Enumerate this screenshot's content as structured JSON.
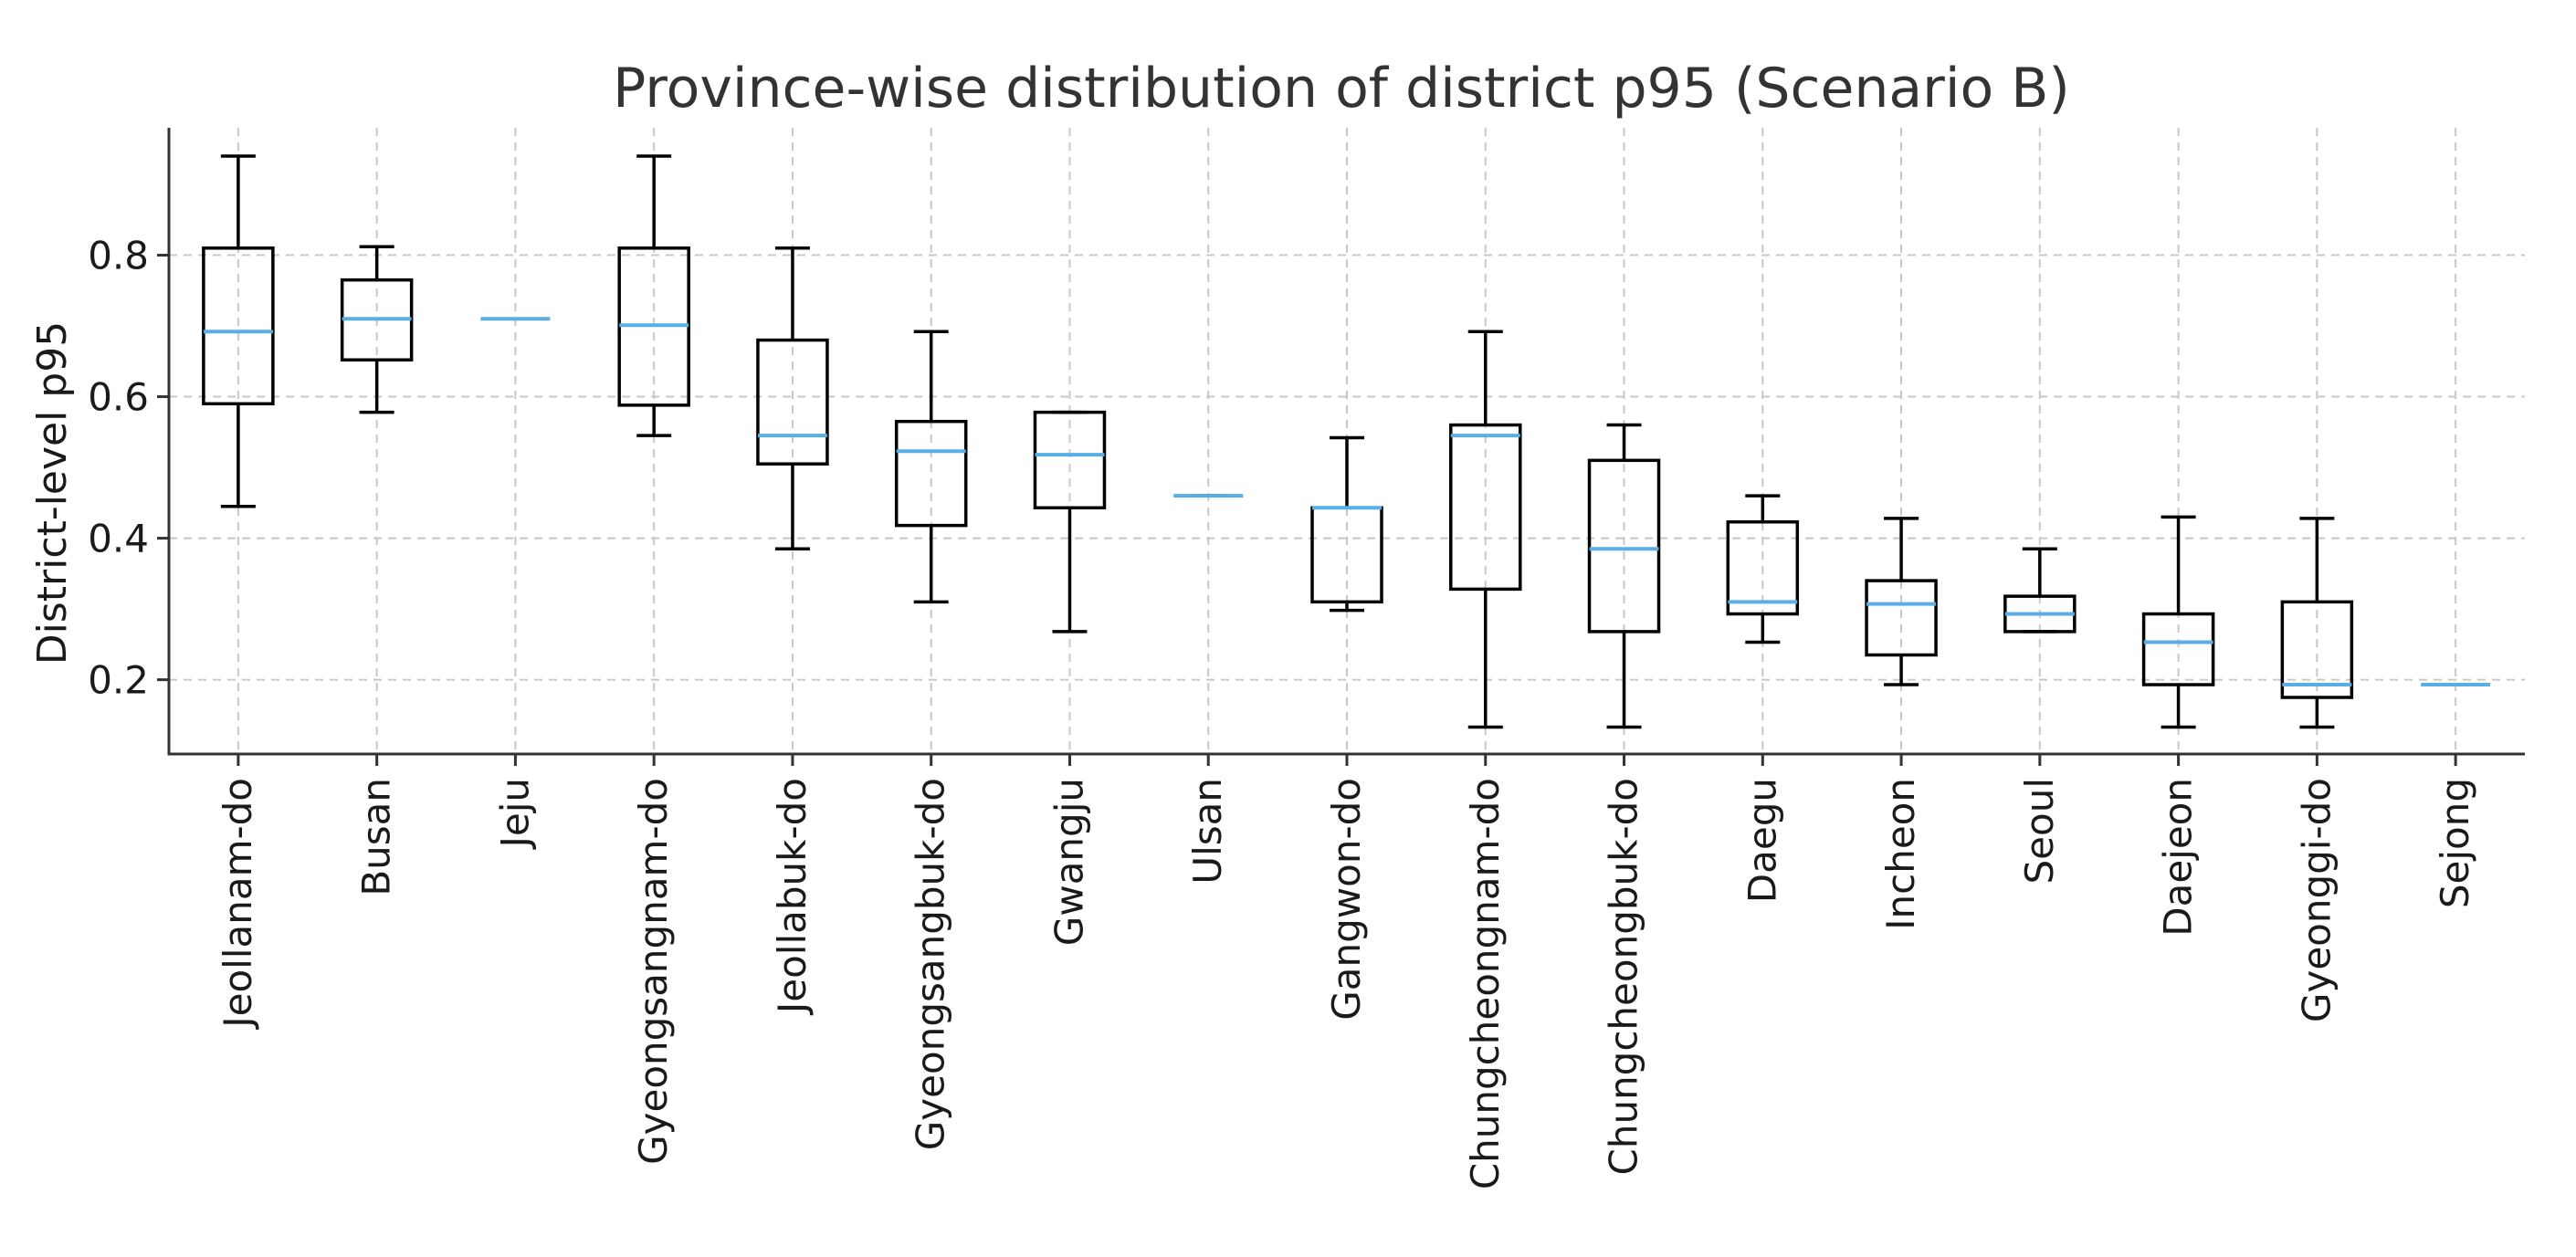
{
  "chart_data": {
    "type": "box",
    "title": "Province-wise distribution of district p95 (Scenario B)",
    "xlabel": "",
    "ylabel": "District-level p95",
    "ylim": [
      0.095,
      0.98
    ],
    "yticks": [
      0.2,
      0.4,
      0.6,
      0.8
    ],
    "ytick_labels": [
      "0.2",
      "0.4",
      "0.6",
      "0.8"
    ],
    "grid": true,
    "colors": {
      "box": "#000000",
      "median": "#5aaee6",
      "grid": "#c8c8c8"
    },
    "categories": [
      "Jeollanam-do",
      "Busan",
      "Jeju",
      "Gyeongsangnam-do",
      "Jeollabuk-do",
      "Gyeongsangbuk-do",
      "Gwangju",
      "Ulsan",
      "Gangwon-do",
      "Chungcheongnam-do",
      "Chungcheongbuk-do",
      "Daegu",
      "Incheon",
      "Seoul",
      "Daejeon",
      "Gyeonggi-do",
      "Sejong"
    ],
    "series": [
      {
        "name": "Jeollanam-do",
        "whislo": 0.445,
        "q1": 0.59,
        "med": 0.692,
        "q3": 0.81,
        "whishi": 0.94
      },
      {
        "name": "Busan",
        "whislo": 0.578,
        "q1": 0.652,
        "med": 0.71,
        "q3": 0.765,
        "whishi": 0.812
      },
      {
        "name": "Jeju",
        "whislo": 0.71,
        "q1": 0.71,
        "med": 0.71,
        "q3": 0.71,
        "whishi": 0.71
      },
      {
        "name": "Gyeongsangnam-do",
        "whislo": 0.545,
        "q1": 0.588,
        "med": 0.701,
        "q3": 0.81,
        "whishi": 0.94
      },
      {
        "name": "Jeollabuk-do",
        "whislo": 0.385,
        "q1": 0.505,
        "med": 0.545,
        "q3": 0.68,
        "whishi": 0.81
      },
      {
        "name": "Gyeongsangbuk-do",
        "whislo": 0.31,
        "q1": 0.418,
        "med": 0.523,
        "q3": 0.565,
        "whishi": 0.692
      },
      {
        "name": "Gwangju",
        "whislo": 0.268,
        "q1": 0.443,
        "med": 0.518,
        "q3": 0.578,
        "whishi": 0.578
      },
      {
        "name": "Ulsan",
        "whislo": 0.46,
        "q1": 0.46,
        "med": 0.46,
        "q3": 0.46,
        "whishi": 0.46
      },
      {
        "name": "Gangwon-do",
        "whislo": 0.298,
        "q1": 0.31,
        "med": 0.443,
        "q3": 0.443,
        "whishi": 0.542
      },
      {
        "name": "Chungcheongnam-do",
        "whislo": 0.133,
        "q1": 0.328,
        "med": 0.545,
        "q3": 0.56,
        "whishi": 0.692
      },
      {
        "name": "Chungcheongbuk-do",
        "whislo": 0.133,
        "q1": 0.268,
        "med": 0.385,
        "q3": 0.51,
        "whishi": 0.56
      },
      {
        "name": "Daegu",
        "whislo": 0.253,
        "q1": 0.293,
        "med": 0.31,
        "q3": 0.423,
        "whishi": 0.46
      },
      {
        "name": "Incheon",
        "whislo": 0.193,
        "q1": 0.235,
        "med": 0.307,
        "q3": 0.34,
        "whishi": 0.428
      },
      {
        "name": "Seoul",
        "whislo": 0.268,
        "q1": 0.268,
        "med": 0.293,
        "q3": 0.318,
        "whishi": 0.385
      },
      {
        "name": "Daejeon",
        "whislo": 0.133,
        "q1": 0.193,
        "med": 0.253,
        "q3": 0.293,
        "whishi": 0.43
      },
      {
        "name": "Gyeonggi-do",
        "whislo": 0.133,
        "q1": 0.175,
        "med": 0.193,
        "q3": 0.31,
        "whishi": 0.428
      },
      {
        "name": "Sejong",
        "whislo": 0.193,
        "q1": 0.193,
        "med": 0.193,
        "q3": 0.193,
        "whishi": 0.193
      }
    ]
  }
}
